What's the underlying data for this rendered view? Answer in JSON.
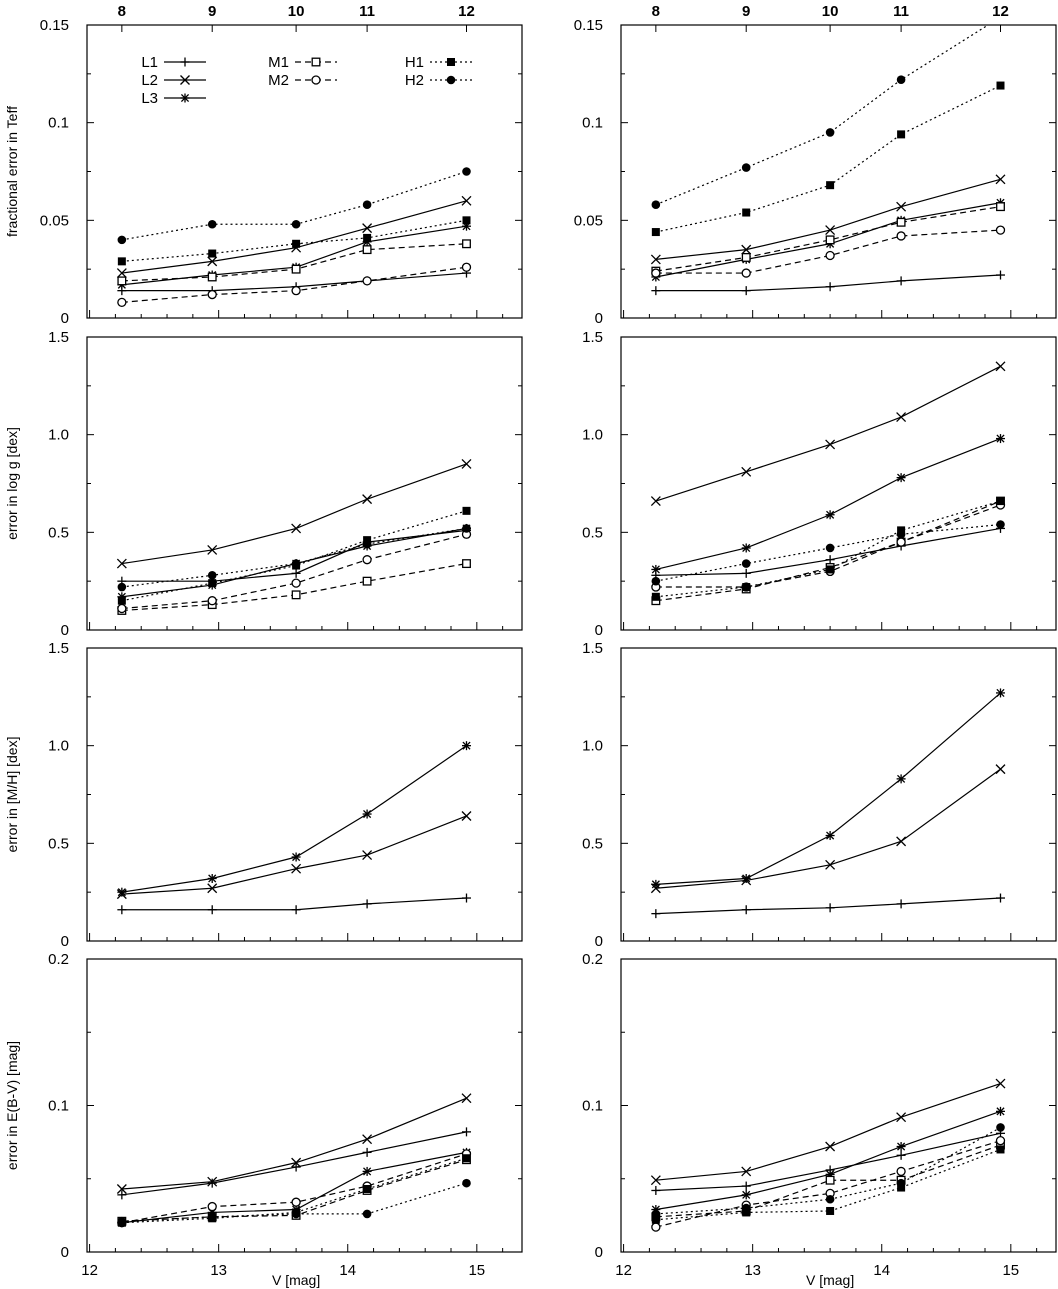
{
  "figure": {
    "top_axis_label_values": [
      "8",
      "9",
      "10",
      "11",
      "12"
    ],
    "x_axis_label": "V [mag]",
    "x_ticks": [
      "12",
      "13",
      "14",
      "15"
    ]
  },
  "legend": {
    "entries": [
      {
        "label": "L1",
        "marker": "plus",
        "dash": "solid"
      },
      {
        "label": "L2",
        "marker": "cross",
        "dash": "solid"
      },
      {
        "label": "L3",
        "marker": "star",
        "dash": "solid"
      },
      {
        "label": "M1",
        "marker": "square-open",
        "dash": "dashed"
      },
      {
        "label": "M2",
        "marker": "circle-open",
        "dash": "dashed"
      },
      {
        "label": "H1",
        "marker": "square-filled",
        "dash": "dotted"
      },
      {
        "label": "H2",
        "marker": "circle-filled",
        "dash": "dotted"
      }
    ]
  },
  "chart_data": [
    {
      "type": "line",
      "row": 0,
      "col": 0,
      "ylabel": "fractional error in Teff",
      "ylim": [
        0,
        0.15
      ],
      "yticks": [
        "0",
        "0.05",
        "0.1",
        "0.15"
      ],
      "ytick_values": [
        0,
        0.05,
        0.1,
        0.15
      ],
      "x": [
        12.25,
        12.95,
        13.6,
        14.15,
        14.92
      ],
      "series": [
        {
          "name": "L1",
          "values": [
            0.014,
            0.014,
            0.016,
            0.019,
            0.023
          ]
        },
        {
          "name": "L2",
          "values": [
            0.023,
            0.029,
            0.036,
            0.046,
            0.06
          ]
        },
        {
          "name": "L3",
          "values": [
            0.017,
            0.022,
            0.026,
            0.039,
            0.047
          ]
        },
        {
          "name": "M1",
          "values": [
            0.019,
            0.021,
            0.025,
            0.035,
            0.038
          ]
        },
        {
          "name": "M2",
          "values": [
            0.008,
            0.012,
            0.014,
            0.019,
            0.026
          ]
        },
        {
          "name": "H1",
          "values": [
            0.029,
            0.033,
            0.038,
            0.041,
            0.05
          ]
        },
        {
          "name": "H2",
          "values": [
            0.04,
            0.048,
            0.048,
            0.058,
            0.075
          ]
        }
      ]
    },
    {
      "type": "line",
      "row": 0,
      "col": 1,
      "ylabel": "",
      "ylim": [
        0,
        0.15
      ],
      "yticks": [
        "0",
        "0.05",
        "0.1",
        "0.15"
      ],
      "ytick_values": [
        0,
        0.05,
        0.1,
        0.15
      ],
      "x": [
        12.25,
        12.95,
        13.6,
        14.15,
        14.92
      ],
      "series": [
        {
          "name": "L1",
          "values": [
            0.014,
            0.014,
            0.016,
            0.019,
            0.022
          ]
        },
        {
          "name": "L2",
          "values": [
            0.03,
            0.035,
            0.045,
            0.057,
            0.071
          ]
        },
        {
          "name": "L3",
          "values": [
            0.021,
            0.03,
            0.038,
            0.05,
            0.059
          ]
        },
        {
          "name": "M1",
          "values": [
            0.024,
            0.031,
            0.04,
            0.049,
            0.057
          ]
        },
        {
          "name": "M2",
          "values": [
            0.023,
            0.023,
            0.032,
            0.042,
            0.045
          ]
        },
        {
          "name": "H1",
          "values": [
            0.044,
            0.054,
            0.068,
            0.094,
            0.119
          ]
        },
        {
          "name": "H2",
          "values": [
            0.058,
            0.077,
            0.095,
            0.122,
            0.154
          ]
        }
      ]
    },
    {
      "type": "line",
      "row": 1,
      "col": 0,
      "ylabel": "error in log g [dex]",
      "ylim": [
        0,
        1.5
      ],
      "yticks": [
        "0",
        "0.5",
        "1.0",
        "1.5"
      ],
      "ytick_values": [
        0,
        0.5,
        1.0,
        1.5
      ],
      "x": [
        12.25,
        12.95,
        13.6,
        14.15,
        14.92
      ],
      "series": [
        {
          "name": "L1",
          "values": [
            0.25,
            0.25,
            0.29,
            0.45,
            0.51
          ]
        },
        {
          "name": "L2",
          "values": [
            0.34,
            0.41,
            0.52,
            0.67,
            0.85
          ]
        },
        {
          "name": "L3",
          "values": [
            0.17,
            0.23,
            0.34,
            0.43,
            0.52
          ]
        },
        {
          "name": "M1",
          "values": [
            0.1,
            0.13,
            0.18,
            0.25,
            0.34
          ]
        },
        {
          "name": "M2",
          "values": [
            0.11,
            0.15,
            0.24,
            0.36,
            0.49
          ]
        },
        {
          "name": "H1",
          "values": [
            0.15,
            0.24,
            0.33,
            0.46,
            0.61
          ]
        },
        {
          "name": "H2",
          "values": [
            0.22,
            0.28,
            0.34,
            0.44,
            0.52
          ]
        }
      ]
    },
    {
      "type": "line",
      "row": 1,
      "col": 1,
      "ylabel": "",
      "ylim": [
        0,
        1.5
      ],
      "yticks": [
        "0",
        "0.5",
        "1.0",
        "1.5"
      ],
      "ytick_values": [
        0,
        0.5,
        1.0,
        1.5
      ],
      "x": [
        12.25,
        12.95,
        13.6,
        14.15,
        14.92
      ],
      "series": [
        {
          "name": "L1",
          "values": [
            0.28,
            0.29,
            0.36,
            0.43,
            0.52
          ]
        },
        {
          "name": "L2",
          "values": [
            0.66,
            0.81,
            0.95,
            1.09,
            1.35
          ]
        },
        {
          "name": "L3",
          "values": [
            0.31,
            0.42,
            0.59,
            0.78,
            0.98
          ]
        },
        {
          "name": "M1",
          "values": [
            0.15,
            0.21,
            0.32,
            0.45,
            0.66
          ]
        },
        {
          "name": "M2",
          "values": [
            0.22,
            0.22,
            0.3,
            0.45,
            0.64
          ]
        },
        {
          "name": "H1",
          "values": [
            0.17,
            0.22,
            0.31,
            0.51,
            0.66
          ]
        },
        {
          "name": "H2",
          "values": [
            0.25,
            0.34,
            0.42,
            0.49,
            0.54
          ]
        }
      ]
    },
    {
      "type": "line",
      "row": 2,
      "col": 0,
      "ylabel": "error in [M/H] [dex]",
      "ylim": [
        0,
        1.5
      ],
      "yticks": [
        "0",
        "0.5",
        "1.0",
        "1.5"
      ],
      "ytick_values": [
        0,
        0.5,
        1.0,
        1.5
      ],
      "x": [
        12.25,
        12.95,
        13.6,
        14.15,
        14.92
      ],
      "series": [
        {
          "name": "L1",
          "values": [
            0.16,
            0.16,
            0.16,
            0.19,
            0.22
          ]
        },
        {
          "name": "L2",
          "values": [
            0.24,
            0.27,
            0.37,
            0.44,
            0.64
          ]
        },
        {
          "name": "L3",
          "values": [
            0.25,
            0.32,
            0.43,
            0.65,
            1.0
          ]
        }
      ]
    },
    {
      "type": "line",
      "row": 2,
      "col": 1,
      "ylabel": "",
      "ylim": [
        0,
        1.5
      ],
      "yticks": [
        "0",
        "0.5",
        "1.0",
        "1.5"
      ],
      "ytick_values": [
        0,
        0.5,
        1.0,
        1.5
      ],
      "x": [
        12.25,
        12.95,
        13.6,
        14.15,
        14.92
      ],
      "series": [
        {
          "name": "L1",
          "values": [
            0.14,
            0.16,
            0.17,
            0.19,
            0.22
          ]
        },
        {
          "name": "L2",
          "values": [
            0.27,
            0.31,
            0.39,
            0.51,
            0.88
          ]
        },
        {
          "name": "L3",
          "values": [
            0.29,
            0.32,
            0.54,
            0.83,
            1.27
          ]
        }
      ]
    },
    {
      "type": "line",
      "row": 3,
      "col": 0,
      "ylabel": "error in E(B-V) [mag]",
      "ylim": [
        0,
        0.2
      ],
      "yticks": [
        "0",
        "0.1",
        "0.2"
      ],
      "ytick_values": [
        0,
        0.1,
        0.2
      ],
      "x": [
        12.25,
        12.95,
        13.6,
        14.15,
        14.92
      ],
      "series": [
        {
          "name": "L1",
          "values": [
            0.039,
            0.047,
            0.058,
            0.068,
            0.082
          ]
        },
        {
          "name": "L2",
          "values": [
            0.043,
            0.048,
            0.061,
            0.077,
            0.105
          ]
        },
        {
          "name": "L3",
          "values": [
            0.02,
            0.027,
            0.029,
            0.055,
            0.068
          ]
        },
        {
          "name": "M1",
          "values": [
            0.021,
            0.024,
            0.025,
            0.042,
            0.063
          ]
        },
        {
          "name": "M2",
          "values": [
            0.02,
            0.031,
            0.034,
            0.045,
            0.067
          ]
        },
        {
          "name": "H1",
          "values": [
            0.02,
            0.023,
            0.027,
            0.043,
            0.064
          ]
        },
        {
          "name": "H2",
          "values": [
            0.021,
            0.024,
            0.026,
            0.026,
            0.047
          ]
        }
      ]
    },
    {
      "type": "line",
      "row": 3,
      "col": 1,
      "ylabel": "",
      "ylim": [
        0,
        0.2
      ],
      "yticks": [
        "0",
        "0.1",
        "0.2"
      ],
      "ytick_values": [
        0,
        0.1,
        0.2
      ],
      "x": [
        12.25,
        12.95,
        13.6,
        14.15,
        14.92
      ],
      "series": [
        {
          "name": "L1",
          "values": [
            0.042,
            0.045,
            0.056,
            0.066,
            0.081
          ]
        },
        {
          "name": "L2",
          "values": [
            0.049,
            0.055,
            0.072,
            0.092,
            0.115
          ]
        },
        {
          "name": "L3",
          "values": [
            0.029,
            0.039,
            0.053,
            0.072,
            0.096
          ]
        },
        {
          "name": "M1",
          "values": [
            0.024,
            0.028,
            0.049,
            0.049,
            0.073
          ]
        },
        {
          "name": "M2",
          "values": [
            0.017,
            0.032,
            0.04,
            0.055,
            0.076
          ]
        },
        {
          "name": "H1",
          "values": [
            0.022,
            0.027,
            0.028,
            0.044,
            0.07
          ]
        },
        {
          "name": "H2",
          "values": [
            0.026,
            0.03,
            0.036,
            0.047,
            0.085
          ]
        }
      ]
    }
  ]
}
